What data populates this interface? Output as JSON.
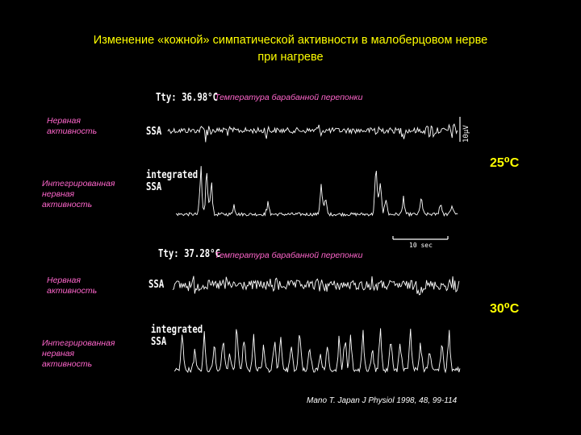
{
  "title": {
    "line1": "Изменение «кожной»  симпатической активности в малоберцовом нерве",
    "line2": "при нагреве"
  },
  "panels": [
    {
      "tty": "Tty: 36.98°C",
      "tty_label": "Температура барабанной перепонки",
      "nerve_label_1": "Нервная",
      "nerve_label_2": "активность",
      "integrated_label_1": "Интегрированная",
      "integrated_label_2": "нервная",
      "integrated_label_3": "активность",
      "ssa": "SSA",
      "integrated": "integrated",
      "integrated_ssa": "SSA",
      "scale": "10μV",
      "temperature": "25⁰C"
    },
    {
      "tty": "Tty: 37.28°C",
      "tty_label": "Температура барабанной перепонки",
      "nerve_label_1": "Нервная",
      "nerve_label_2": "активность",
      "integrated_label_1": "Интегрированная",
      "integrated_label_2": "нервная",
      "integrated_label_3": "активность",
      "ssa": "SSA",
      "integrated": "integrated",
      "integrated_ssa": "SSA",
      "temperature": "30⁰C"
    }
  ],
  "time_scale": "10 sec",
  "citation": "Mano T. Japan J Physiol 1998, 48, 99-114"
}
